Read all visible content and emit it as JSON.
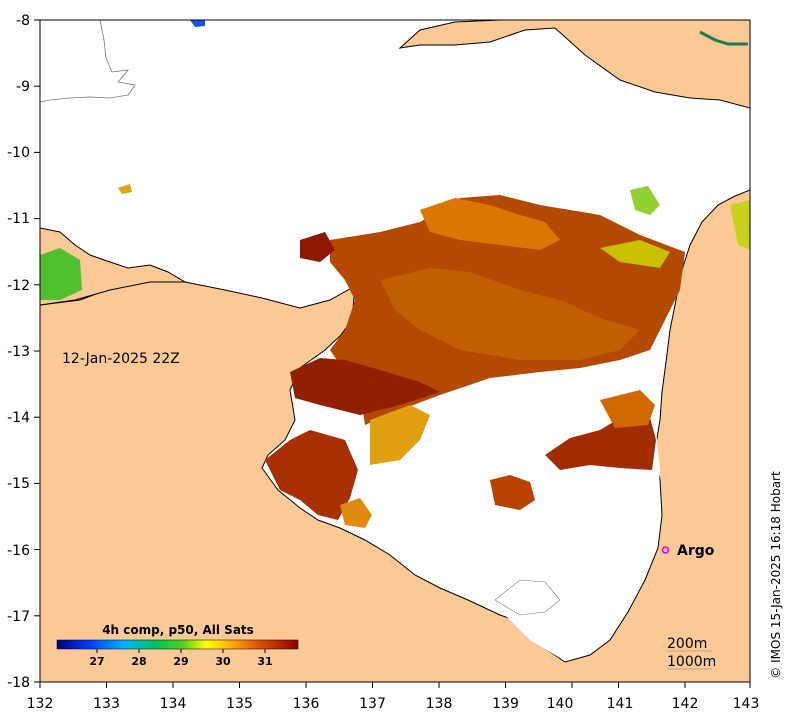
{
  "map": {
    "date_label": "12-Jan-2025 22Z",
    "copyright": "© IMOS 15-Jan-2025 16:18 Hobart",
    "argo_label": "Argo",
    "depth_contours": [
      "200m",
      "1000m"
    ],
    "x_ticks": [
      "132",
      "133",
      "134",
      "135",
      "136",
      "137",
      "138",
      "139",
      "140",
      "141",
      "142",
      "143"
    ],
    "y_ticks": [
      "-8",
      "-9",
      "-10",
      "-11",
      "-12",
      "-13",
      "-14",
      "-15",
      "-16",
      "-17",
      "-18"
    ],
    "colorbar": {
      "title": "4h comp, p50, All Sats",
      "ticks": [
        "27",
        "28",
        "29",
        "30",
        "31"
      ],
      "range": [
        26.2,
        31.8
      ]
    },
    "colors": {
      "land": "#fbc995",
      "water_nodata": "#ffffff",
      "argo_marker": "#e000e0"
    }
  }
}
